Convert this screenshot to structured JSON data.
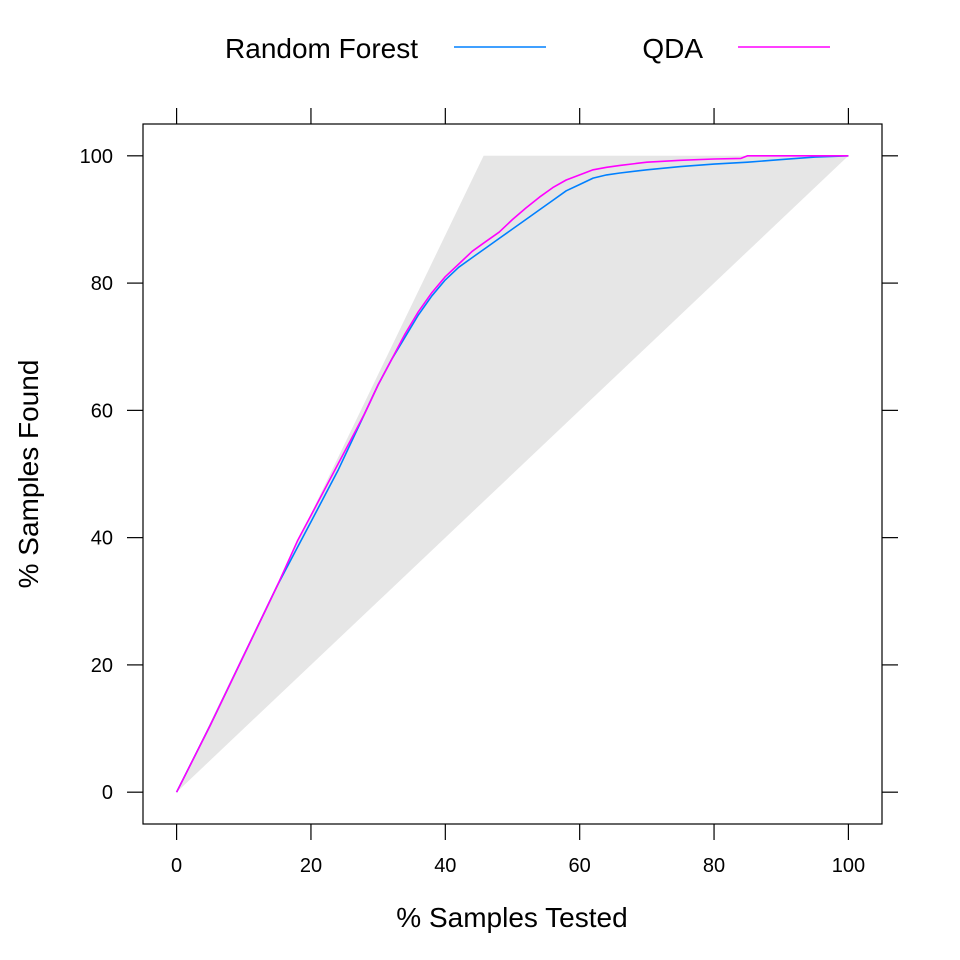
{
  "chart_data": {
    "type": "line",
    "xlabel": "% Samples Tested",
    "ylabel": "% Samples Found",
    "xlim": [
      -5,
      105
    ],
    "ylim": [
      -5,
      105
    ],
    "x_ticks": [
      "0",
      "20",
      "40",
      "60",
      "80",
      "100"
    ],
    "y_ticks": [
      "0",
      "20",
      "40",
      "60",
      "80",
      "100"
    ],
    "legend_position": "top",
    "band_color": "#e6e6e6",
    "reference_band": {
      "upper": {
        "x": [
          0,
          45.7,
          100
        ],
        "y": [
          0,
          100,
          100
        ]
      },
      "lower": {
        "x": [
          0,
          100
        ],
        "y": [
          0,
          100
        ]
      }
    },
    "series": [
      {
        "name": "Random Forest",
        "color": "#0080ff",
        "x": [
          0,
          5,
          10,
          15,
          18,
          20,
          22,
          24,
          26,
          28,
          30,
          32,
          34,
          36,
          38,
          40,
          42,
          44,
          46,
          48,
          50,
          52,
          54,
          56,
          58,
          60,
          62,
          64,
          66,
          70,
          75,
          80,
          85,
          90,
          95,
          100
        ],
        "y": [
          0,
          10.5,
          21.5,
          32.5,
          38.5,
          42.5,
          46.5,
          50.5,
          55,
          59.5,
          64,
          68,
          71.5,
          75,
          78,
          80.5,
          82.5,
          84,
          85.5,
          87,
          88.5,
          90,
          91.5,
          93,
          94.5,
          95.5,
          96.5,
          97,
          97.3,
          97.8,
          98.3,
          98.7,
          99,
          99.4,
          99.8,
          100
        ]
      },
      {
        "name": "QDA",
        "color": "#ff00ff",
        "x": [
          0,
          5,
          10,
          15,
          18,
          20,
          22,
          24,
          26,
          28,
          30,
          32,
          34,
          36,
          38,
          40,
          42,
          44,
          46,
          48,
          50,
          52,
          54,
          56,
          58,
          60,
          62,
          64,
          66,
          70,
          75,
          80,
          84,
          85,
          90,
          95,
          100
        ],
        "y": [
          0,
          10.5,
          21.5,
          32.5,
          39.5,
          43.5,
          47.5,
          51.5,
          55.5,
          59.5,
          64,
          68,
          72,
          75.5,
          78.5,
          81,
          83,
          85,
          86.5,
          88,
          90,
          91.8,
          93.5,
          95,
          96.2,
          97,
          97.8,
          98.2,
          98.5,
          99,
          99.3,
          99.5,
          99.6,
          100,
          100,
          100,
          100
        ]
      }
    ]
  }
}
